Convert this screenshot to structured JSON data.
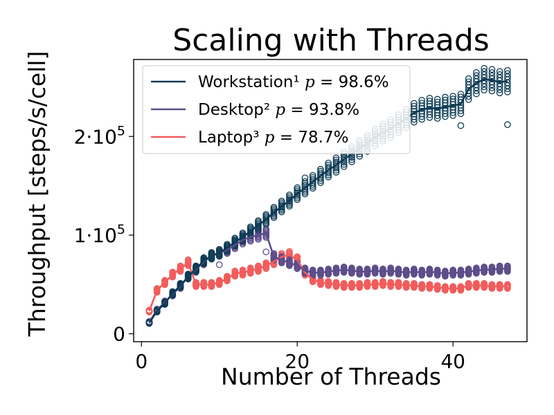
{
  "chart_data": {
    "type": "scatter",
    "title": "Scaling with Threads",
    "xlabel": "Number of Threads",
    "ylabel": "Throughput [steps/s/cell]",
    "xlim": [
      -1,
      49.5
    ],
    "ylim": [
      -8000,
      278000
    ],
    "xticks": [
      {
        "value": 0,
        "label": "0"
      },
      {
        "value": 20,
        "label": "20"
      },
      {
        "value": 40,
        "label": "40"
      }
    ],
    "yticks": [
      {
        "value": 0,
        "label": "0",
        "sup": ""
      },
      {
        "value": 100000,
        "label": "1·10",
        "sup": "5"
      },
      {
        "value": 200000,
        "label": "2·10",
        "sup": "5"
      }
    ],
    "legend_position": "top-left",
    "series": [
      {
        "name": "Workstation¹",
        "p_label": "p = 98.6%",
        "color": "#0d3b54",
        "fit": "x ≈ 0.986",
        "x": [
          1,
          2,
          3,
          4,
          5,
          6,
          7,
          8,
          9,
          10,
          11,
          12,
          13,
          14,
          15,
          16,
          17,
          18,
          19,
          20,
          21,
          22,
          23,
          24,
          25,
          26,
          27,
          28,
          29,
          30,
          31,
          32,
          33,
          34,
          35,
          36,
          37,
          38,
          39,
          40,
          41,
          42,
          43,
          44,
          45,
          46,
          47
        ],
        "y": [
          11000,
          23000,
          31000,
          41000,
          49000,
          58000,
          66000,
          74000,
          79000,
          82000,
          87000,
          93000,
          98000,
          104000,
          110000,
          116000,
          123000,
          129000,
          135000,
          142000,
          148000,
          154000,
          160000,
          166000,
          171000,
          177000,
          182000,
          188000,
          193000,
          199000,
          204000,
          208000,
          213000,
          218000,
          224000,
          227000,
          229000,
          228000,
          230000,
          231000,
          233000,
          248000,
          254000,
          258000,
          257000,
          255000,
          256000
        ],
        "outliers": [
          {
            "x": 41,
            "y": 211000
          },
          {
            "x": 47,
            "y": 212000
          },
          {
            "x": 21,
            "y": 158000
          }
        ]
      },
      {
        "name": "Desktop²",
        "p_label": "p = 93.8%",
        "color": "#5c4d8a",
        "fit": "x ≈ 0.938",
        "x": [
          1,
          2,
          3,
          4,
          5,
          6,
          7,
          8,
          9,
          10,
          11,
          12,
          13,
          14,
          15,
          16,
          17,
          18,
          19,
          20,
          21,
          22,
          23,
          24,
          25,
          26,
          27,
          28,
          29,
          30,
          31,
          32,
          33,
          34,
          35,
          36,
          37,
          38,
          39,
          40,
          41,
          42,
          43,
          44,
          45,
          46,
          47
        ],
        "y": [
          12000,
          24000,
          32000,
          40000,
          48000,
          58000,
          65000,
          73000,
          79000,
          82000,
          85000,
          90000,
          95000,
          98000,
          100000,
          102000,
          78000,
          75000,
          72000,
          69000,
          64000,
          62000,
          62000,
          63000,
          64000,
          65000,
          64000,
          63000,
          63000,
          64000,
          63000,
          64000,
          63000,
          62000,
          63000,
          62000,
          63000,
          62000,
          61000,
          62000,
          62000,
          63000,
          64000,
          65000,
          65000,
          66000,
          66000
        ],
        "outliers": [
          {
            "x": 16,
            "y": 83000
          },
          {
            "x": 10,
            "y": 70000
          }
        ]
      },
      {
        "name": "Laptop³",
        "p_label": "p = 78.7%",
        "color": "#f25c5c",
        "fit": "x ≈ 0.787",
        "x": [
          1,
          2,
          3,
          4,
          5,
          6,
          7,
          8,
          9,
          10,
          11,
          12,
          13,
          14,
          15,
          16,
          17,
          18,
          19,
          20,
          21,
          22,
          23,
          24,
          25,
          26,
          27,
          28,
          29,
          30,
          31,
          32,
          33,
          34,
          35,
          36,
          37,
          38,
          39,
          40,
          41,
          42,
          43,
          44,
          45,
          46,
          47
        ],
        "y": [
          23000,
          44000,
          52000,
          60000,
          66000,
          72000,
          50000,
          50000,
          50000,
          52000,
          56000,
          61000,
          62000,
          64000,
          66000,
          69000,
          73000,
          78000,
          80000,
          75000,
          62000,
          55000,
          52000,
          51000,
          50000,
          49000,
          49000,
          49000,
          50000,
          50000,
          51000,
          50000,
          50000,
          49000,
          49000,
          48000,
          48000,
          47000,
          46000,
          46000,
          46000,
          49000,
          49000,
          49000,
          48000,
          48000,
          48000
        ],
        "outliers": []
      }
    ]
  }
}
